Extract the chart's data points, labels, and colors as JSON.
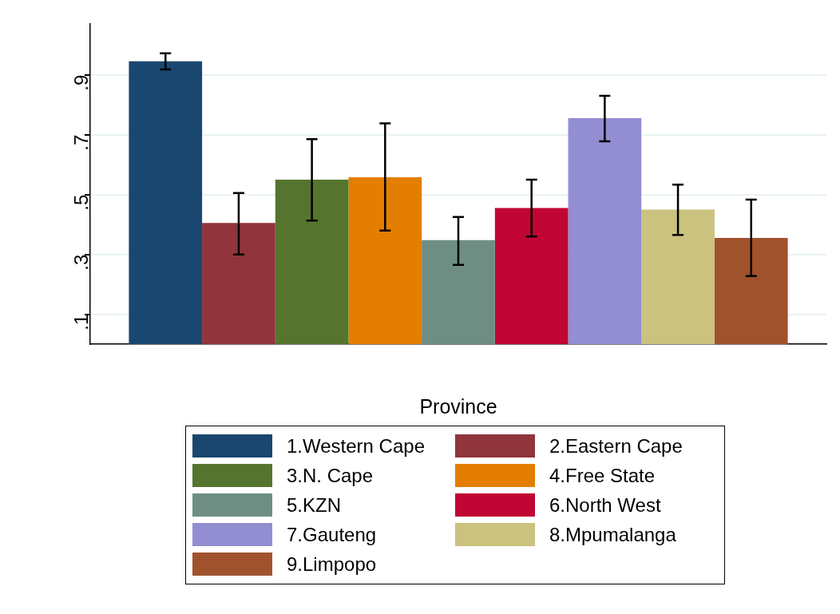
{
  "chart_data": {
    "type": "bar",
    "xlabel": "Province",
    "categories": [
      null
    ],
    "series": [
      {
        "name": "1.Western Cape",
        "color": "#1a476f",
        "values": [
          0.945
        ],
        "errors": [
          [
            0.918,
            0.972
          ]
        ]
      },
      {
        "name": "2.Eastern Cape",
        "color": "#90353b",
        "values": [
          0.405
        ],
        "errors": [
          [
            0.3,
            0.505
          ]
        ]
      },
      {
        "name": "3.N. Cape",
        "color": "#55752f",
        "values": [
          0.55
        ],
        "errors": [
          [
            0.413,
            0.685
          ]
        ]
      },
      {
        "name": "4.Free State",
        "color": "#e37e00",
        "values": [
          0.558
        ],
        "errors": [
          [
            0.38,
            0.738
          ]
        ]
      },
      {
        "name": "5.KZN",
        "color": "#6e8e84",
        "values": [
          0.348
        ],
        "errors": [
          [
            0.265,
            0.425
          ]
        ]
      },
      {
        "name": "6.North West",
        "color": "#c10534",
        "values": [
          0.455
        ],
        "errors": [
          [
            0.36,
            0.55
          ]
        ]
      },
      {
        "name": "7.Gauteng",
        "color": "#938dd2",
        "values": [
          0.755
        ],
        "errors": [
          [
            0.678,
            0.83
          ]
        ]
      },
      {
        "name": "8.Mpumalanga",
        "color": "#cac27e",
        "values": [
          0.45
        ],
        "errors": [
          [
            0.365,
            0.533
          ]
        ]
      },
      {
        "name": "9.Limpopo",
        "color": "#a0522d",
        "values": [
          0.355
        ],
        "errors": [
          [
            0.228,
            0.483
          ]
        ]
      }
    ],
    "ylim": [
      0,
      1.07
    ],
    "yticks": [
      {
        "value": 0.1,
        "label": ".1"
      },
      {
        "value": 0.3,
        "label": ".3"
      },
      {
        "value": 0.5,
        "label": ".5"
      },
      {
        "value": 0.7,
        "label": ".7"
      },
      {
        "value": 0.9,
        "label": ".9"
      }
    ],
    "grid": "y",
    "legend": "bottom"
  }
}
